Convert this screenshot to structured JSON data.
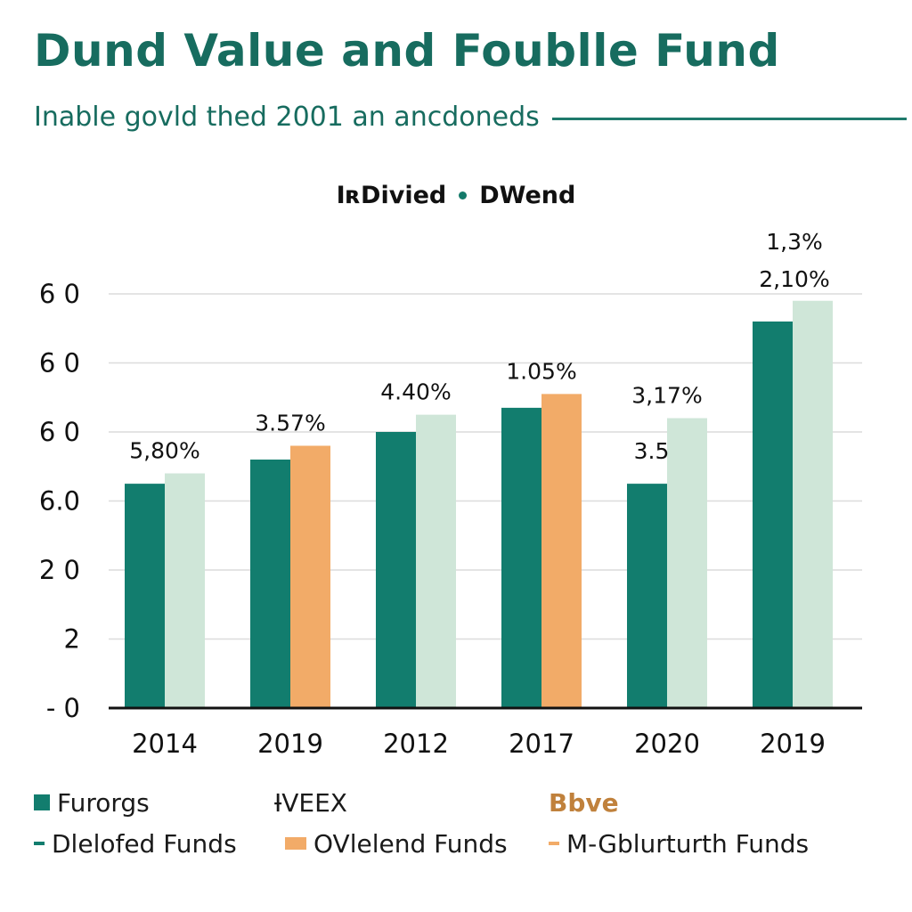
{
  "title": "Dund Value and Foublle Fund",
  "subtitle": "Inable govld thed 2001 an ancdoneds",
  "colors": {
    "title": "#176c5f",
    "dark_teal": "#127d6e",
    "light_green": "#cfe6d8",
    "orange": "#f2ab68",
    "legend_bold": "#c0813c"
  },
  "chart_data": {
    "type": "bar",
    "title": "Dund Value and Foublle Fund",
    "series_header": [
      "IʀDivied",
      "DWend"
    ],
    "categories": [
      "2014",
      "2019",
      "2012",
      "2017",
      "2020",
      "2019"
    ],
    "y_tick_labels": [
      "- 0",
      "2",
      "2 0",
      "6.0",
      "6 0",
      "6 0",
      "6 0"
    ],
    "ylim": [
      0,
      60
    ],
    "grid": true,
    "series": [
      {
        "name": "IʀDivied",
        "values": [
          32.5,
          36.0,
          40.0,
          43.5,
          32.5,
          56.0
        ],
        "colors": [
          "dark_teal",
          "dark_teal",
          "dark_teal",
          "dark_teal",
          "dark_teal",
          "dark_teal"
        ]
      },
      {
        "name": "DWend",
        "values": [
          34.0,
          38.0,
          42.5,
          45.5,
          42.0,
          59.0
        ],
        "colors": [
          "light_green",
          "orange",
          "light_green",
          "orange",
          "light_green",
          "light_green"
        ]
      }
    ],
    "annotations": [
      {
        "category_index": 0,
        "text": "5,80%"
      },
      {
        "category_index": 1,
        "text": "3.57%"
      },
      {
        "category_index": 2,
        "text": "4.40%"
      },
      {
        "category_index": 3,
        "text": "1.05%"
      },
      {
        "category_index": 4,
        "text": "3,17%"
      },
      {
        "category_index": 4,
        "text": "3.5",
        "series_index": 0
      },
      {
        "category_index": 5,
        "text": "1,3%",
        "line": 0
      },
      {
        "category_index": 5,
        "text": "2,10%",
        "line": 1
      }
    ]
  },
  "legend": {
    "row1": [
      "Furorgs",
      "ƗVEEX",
      "Bbve"
    ],
    "row2": [
      "Dlelofed Funds",
      "OVlelend Funds",
      "M-Gblurturth Funds"
    ]
  }
}
